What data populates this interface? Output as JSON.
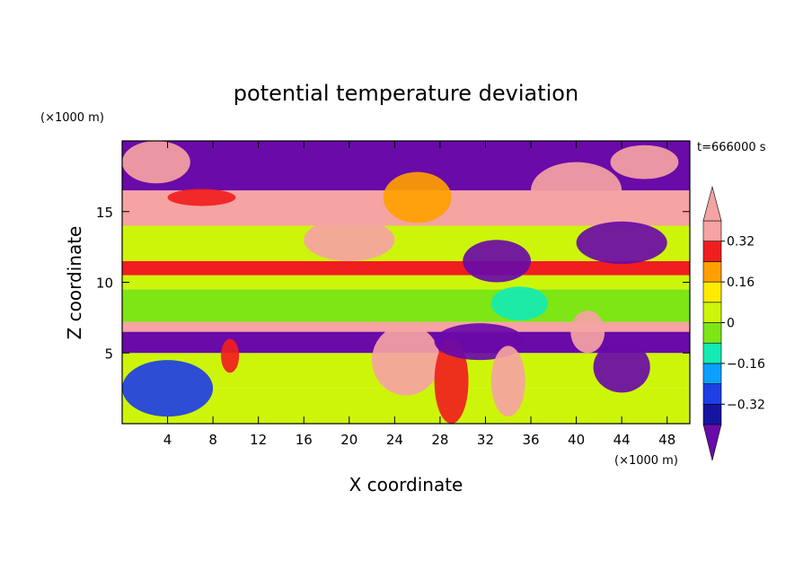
{
  "chart_data": {
    "type": "heatmap",
    "title": "potential temperature deviation",
    "xlabel": "X coordinate",
    "ylabel": "Z coordinate",
    "x_unit": "(×1000 m)",
    "y_unit": "(×1000 m)",
    "time_label": "t=666000 s",
    "xlim": [
      0,
      50
    ],
    "ylim": [
      0,
      20
    ],
    "x_ticks": [
      4,
      8,
      12,
      16,
      20,
      24,
      28,
      32,
      36,
      40,
      44,
      48
    ],
    "y_ticks": [
      5,
      10,
      15
    ],
    "colorbar": {
      "levels": [
        -0.4,
        -0.32,
        -0.24,
        -0.16,
        -0.08,
        0,
        0.08,
        0.16,
        0.24,
        0.32,
        0.4
      ],
      "labels": [
        "0.32",
        "0.16",
        "0",
        "−0.16",
        "−0.32"
      ],
      "label_values": [
        0.32,
        0.16,
        0,
        -0.16,
        -0.32
      ],
      "under_color": "#6a0aa8",
      "over_color": "#f5a3a3",
      "colors": [
        "#1414a0",
        "#1e3ee6",
        "#0aa0ff",
        "#14ebb4",
        "#7de614",
        "#cdf50a",
        "#ffeb00",
        "#ffa000",
        "#f01e1e"
      ]
    },
    "bands": [
      {
        "z0": 0,
        "z1": 2.5,
        "value": 0.05
      },
      {
        "z0": 2.5,
        "z1": 5,
        "value": 0.0
      },
      {
        "z0": 5,
        "z1": 6.5,
        "value": -0.45
      },
      {
        "z0": 6.5,
        "z1": 7.2,
        "value": 0.45
      },
      {
        "z0": 7.2,
        "z1": 9.5,
        "value": -0.02
      },
      {
        "z0": 9.5,
        "z1": 10.5,
        "value": 0.05
      },
      {
        "z0": 10.5,
        "z1": 11.5,
        "value": 0.3
      },
      {
        "z0": 11.5,
        "z1": 14,
        "value": 0.06
      },
      {
        "z0": 14,
        "z1": 16.5,
        "value": 0.45
      },
      {
        "z0": 16.5,
        "z1": 20,
        "value": -0.45
      }
    ],
    "blobs": [
      {
        "x": 4,
        "z": 2.5,
        "rx": 4,
        "rz": 2,
        "value": -0.3
      },
      {
        "x": 9.5,
        "z": 4.8,
        "rx": 0.8,
        "rz": 1.2,
        "value": 0.3
      },
      {
        "x": 25,
        "z": 4.5,
        "rx": 3,
        "rz": 2.5,
        "value": 0.45
      },
      {
        "x": 29,
        "z": 3,
        "rx": 1.5,
        "rz": 3,
        "value": 0.28
      },
      {
        "x": 31.5,
        "z": 5.8,
        "rx": 4,
        "rz": 1.3,
        "value": -0.45
      },
      {
        "x": 34,
        "z": 3,
        "rx": 1.5,
        "rz": 2.5,
        "value": 0.4
      },
      {
        "x": 44,
        "z": 4,
        "rx": 2.5,
        "rz": 1.8,
        "value": -0.45
      },
      {
        "x": 35,
        "z": 8.5,
        "rx": 2.5,
        "rz": 1.2,
        "value": -0.12
      },
      {
        "x": 41,
        "z": 6.5,
        "rx": 1.5,
        "rz": 1.5,
        "value": 0.45
      },
      {
        "x": 20,
        "z": 13,
        "rx": 4,
        "rz": 1.5,
        "value": 0.42
      },
      {
        "x": 33,
        "z": 11.5,
        "rx": 3,
        "rz": 1.5,
        "value": -0.42
      },
      {
        "x": 44,
        "z": 12.8,
        "rx": 4,
        "rz": 1.5,
        "value": -0.45
      },
      {
        "x": 7,
        "z": 16,
        "rx": 3,
        "rz": 0.6,
        "value": 0.24
      },
      {
        "x": 3,
        "z": 18.5,
        "rx": 3,
        "rz": 1.5,
        "value": 0.45
      },
      {
        "x": 40,
        "z": 16.5,
        "rx": 4,
        "rz": 2,
        "value": 0.45
      },
      {
        "x": 26,
        "z": 16,
        "rx": 3,
        "rz": 1.8,
        "value": 0.2
      },
      {
        "x": 46,
        "z": 18.5,
        "rx": 3,
        "rz": 1.2,
        "value": 0.45
      }
    ]
  }
}
